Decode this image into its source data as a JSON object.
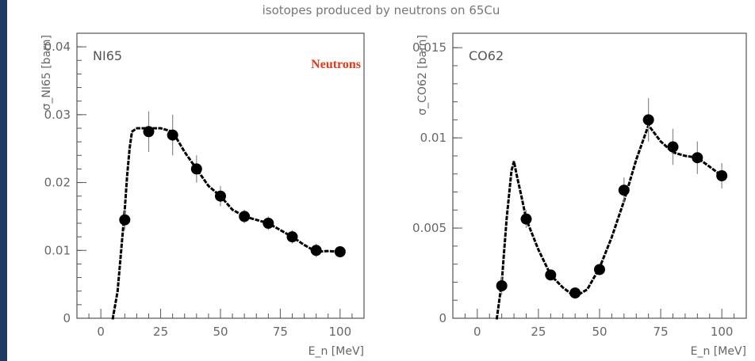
{
  "figure_title": "isotopes produced by neutrons on 65Cu",
  "colors": {
    "background": "#1d3b63",
    "annotation": "#e23a1a",
    "axes": "#555555",
    "data": "#000000"
  },
  "chart_data": [
    {
      "type": "scatter",
      "panel_label": "NI65",
      "annotation": "Neutrons",
      "ylabel": "σ_NI65 [barn]",
      "xlabel": "E_n [MeV]",
      "xlim": [
        -10,
        110
      ],
      "ylim": [
        0,
        0.042
      ],
      "xticks": [
        0,
        25,
        50,
        75,
        100
      ],
      "yticks": [
        0,
        0.01,
        0.02,
        0.03,
        0.04
      ],
      "ytick_labels": [
        "0",
        "0.01",
        "0.02",
        "0.03",
        "0.04"
      ],
      "series": [
        {
          "kind": "data with error bars",
          "x": [
            10,
            20,
            30,
            40,
            50,
            60,
            70,
            80,
            90,
            100
          ],
          "y": [
            0.0145,
            0.0275,
            0.027,
            0.022,
            0.018,
            0.015,
            0.014,
            0.012,
            0.01,
            0.0098
          ],
          "yerr": [
            0.0015,
            0.003,
            0.003,
            0.002,
            0.0015,
            0.001,
            0.001,
            0.001,
            0.001,
            0.0008
          ]
        },
        {
          "kind": "calculated curve",
          "x": [
            5,
            7,
            8,
            9,
            10,
            11,
            12,
            13,
            15,
            20,
            25,
            30,
            35,
            40,
            45,
            50,
            55,
            60,
            65,
            70,
            75,
            80,
            85,
            90,
            95,
            100
          ],
          "y": [
            0,
            0.004,
            0.008,
            0.012,
            0.016,
            0.021,
            0.025,
            0.0275,
            0.028,
            0.028,
            0.028,
            0.0275,
            0.0245,
            0.022,
            0.0195,
            0.018,
            0.016,
            0.015,
            0.0145,
            0.014,
            0.013,
            0.012,
            0.0108,
            0.0098,
            0.0099,
            0.0098
          ]
        }
      ]
    },
    {
      "type": "scatter",
      "panel_label": "CO62",
      "ylabel": "σ_CO62 [barn]",
      "xlabel": "E_n [MeV]",
      "xlim": [
        -10,
        110
      ],
      "ylim": [
        0,
        0.0158
      ],
      "xticks": [
        0,
        25,
        50,
        75,
        100
      ],
      "yticks": [
        0,
        0.005,
        0.01,
        0.015
      ],
      "ytick_labels": [
        "0",
        "0.005",
        "0.01",
        "0.015"
      ],
      "series": [
        {
          "kind": "data with error bars",
          "x": [
            10,
            20,
            30,
            40,
            50,
            60,
            70,
            80,
            90,
            100
          ],
          "y": [
            0.0018,
            0.0055,
            0.0024,
            0.0014,
            0.0027,
            0.0071,
            0.011,
            0.0095,
            0.0089,
            0.0079
          ],
          "yerr": [
            0.0005,
            0.0005,
            0.0003,
            0.0002,
            0.0003,
            0.0007,
            0.0012,
            0.001,
            0.0009,
            0.0007
          ]
        },
        {
          "kind": "calculated curve",
          "x": [
            8,
            10,
            12,
            14,
            15,
            16,
            18,
            20,
            25,
            30,
            35,
            40,
            45,
            50,
            55,
            60,
            65,
            70,
            75,
            80,
            85,
            90,
            95,
            100
          ],
          "y": [
            0,
            0.002,
            0.0055,
            0.0082,
            0.0087,
            0.008,
            0.0068,
            0.0055,
            0.0038,
            0.0024,
            0.0017,
            0.0012,
            0.0016,
            0.0028,
            0.0045,
            0.0065,
            0.0088,
            0.0107,
            0.0098,
            0.0092,
            0.009,
            0.0089,
            0.0084,
            0.0079
          ]
        }
      ]
    }
  ]
}
